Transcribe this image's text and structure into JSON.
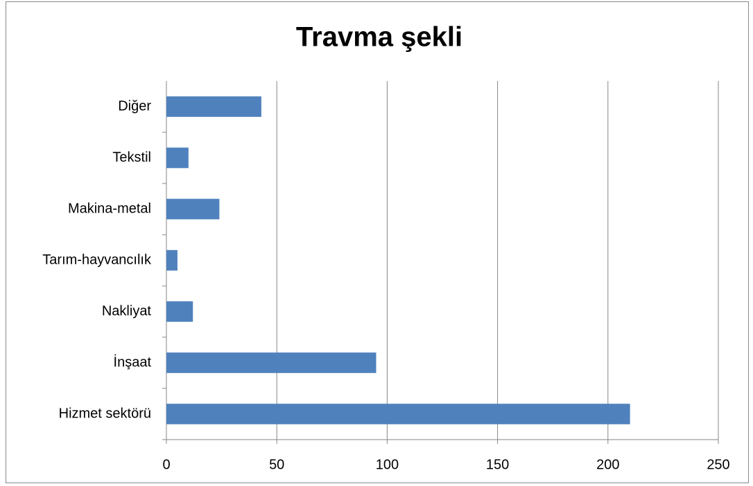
{
  "chart_data": {
    "type": "bar",
    "orientation": "horizontal",
    "title": "Travma şekli",
    "categories": [
      "Hizmet sektörü",
      "İnşaat",
      "Nakliyat",
      "Tarım-hayvancılık",
      "Makina-metal",
      "Tekstil",
      "Diğer"
    ],
    "values": [
      210,
      95,
      12,
      5,
      24,
      10,
      43
    ],
    "color": "#4f81bd",
    "xlim": [
      0,
      250
    ],
    "xticks": [
      0,
      50,
      100,
      150,
      200,
      250
    ],
    "grid": true
  }
}
